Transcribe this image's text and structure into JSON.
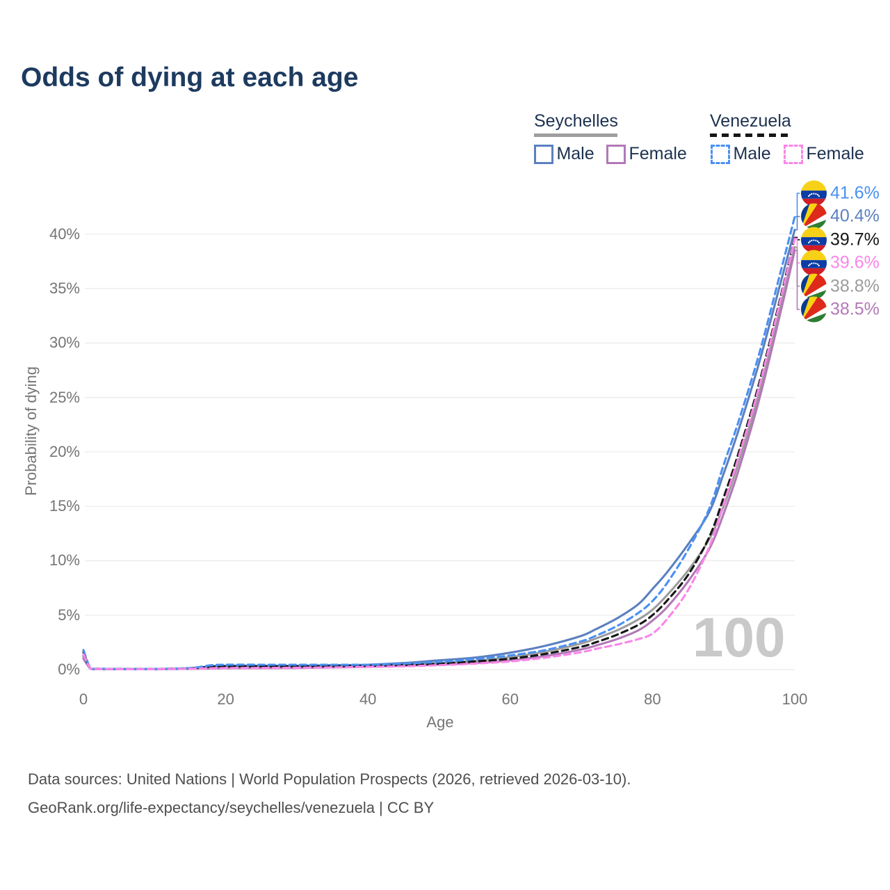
{
  "title": "Odds of dying at each age",
  "watermark": "100",
  "legend": {
    "groups": [
      {
        "name": "Seychelles",
        "line_style": "solid",
        "underline_color": "#9e9e9e",
        "items": [
          {
            "label": "Male",
            "color": "#5B80C0"
          },
          {
            "label": "Female",
            "color": "#B279B6"
          }
        ]
      },
      {
        "name": "Venezuela",
        "line_style": "dashed",
        "underline_color": "#161616",
        "items": [
          {
            "label": "Male",
            "color": "#4A90F2"
          },
          {
            "label": "Female",
            "color": "#FA86E8"
          }
        ]
      }
    ]
  },
  "footer": {
    "line1": "Data sources: United Nations | World Population Prospects (2026, retrieved 2026-03-10).",
    "line2": "GeoRank.org/life-expectancy/seychelles/venezuela | CC BY"
  },
  "chart_data": {
    "type": "line",
    "title": "Odds of dying at each age",
    "xlabel": "Age",
    "ylabel": "Probability of dying",
    "xlim": [
      0,
      100
    ],
    "ylim_pct": [
      0,
      42
    ],
    "grid": "horizontal",
    "legend_position": "top-right",
    "x_ticks": [
      0,
      20,
      40,
      60,
      80,
      100
    ],
    "y_ticks": {
      "values": [
        0,
        5,
        10,
        15,
        20,
        25,
        30,
        35,
        40
      ],
      "labels": [
        "0%",
        "5%",
        "10%",
        "15%",
        "20%",
        "25%",
        "30%",
        "35%",
        "40%"
      ]
    },
    "x": [
      0,
      1,
      2,
      5,
      10,
      15,
      18,
      20,
      25,
      30,
      35,
      40,
      45,
      50,
      55,
      60,
      65,
      70,
      72,
      75,
      78,
      80,
      82,
      85,
      88,
      90,
      92,
      95,
      98,
      100
    ],
    "series": [
      {
        "id": "ve-male",
        "country": "Venezuela",
        "sex": "male",
        "flag": "ve",
        "color": "#4A90F2",
        "dashed": true,
        "end_label": "41.6%",
        "values": [
          1.8,
          0.12,
          0.08,
          0.05,
          0.05,
          0.15,
          0.4,
          0.45,
          0.45,
          0.45,
          0.45,
          0.45,
          0.55,
          0.7,
          0.95,
          1.3,
          1.8,
          2.6,
          3.1,
          4.0,
          5.2,
          6.3,
          7.9,
          11.0,
          14.8,
          18.8,
          22.6,
          29.0,
          36.5,
          41.6
        ]
      },
      {
        "id": "sc-male",
        "country": "Seychelles",
        "sex": "male",
        "flag": "sc",
        "color": "#5B80C0",
        "dashed": false,
        "end_label": "40.4%",
        "values": [
          1.3,
          0.1,
          0.07,
          0.05,
          0.05,
          0.12,
          0.3,
          0.35,
          0.35,
          0.35,
          0.4,
          0.45,
          0.6,
          0.85,
          1.1,
          1.55,
          2.2,
          3.1,
          3.7,
          4.7,
          6.0,
          7.4,
          8.9,
          11.5,
          14.5,
          18.0,
          21.8,
          28.2,
          35.5,
          40.4
        ]
      },
      {
        "id": "ve-all",
        "country": "Venezuela",
        "sex": "all",
        "flag": "ve",
        "color": "#161616",
        "dashed": true,
        "end_label": "39.7%",
        "values": [
          1.6,
          0.11,
          0.07,
          0.05,
          0.05,
          0.12,
          0.28,
          0.3,
          0.3,
          0.3,
          0.32,
          0.35,
          0.42,
          0.55,
          0.75,
          1.0,
          1.45,
          2.1,
          2.5,
          3.2,
          4.1,
          5.0,
          6.3,
          8.7,
          12.2,
          15.8,
          19.7,
          26.3,
          34.2,
          39.7
        ]
      },
      {
        "id": "ve-female",
        "country": "Venezuela",
        "sex": "female",
        "flag": "ve",
        "color": "#FA86E8",
        "dashed": true,
        "end_label": "39.6%",
        "values": [
          1.4,
          0.1,
          0.06,
          0.04,
          0.04,
          0.08,
          0.12,
          0.14,
          0.15,
          0.17,
          0.2,
          0.24,
          0.3,
          0.4,
          0.55,
          0.75,
          1.1,
          1.6,
          1.9,
          2.3,
          2.8,
          3.3,
          4.6,
          7.3,
          11.3,
          15.2,
          19.3,
          26.0,
          34.0,
          39.6
        ]
      },
      {
        "id": "sc-all",
        "country": "Seychelles",
        "sex": "all",
        "flag": "sc",
        "color": "#9C9C9C",
        "dashed": false,
        "end_label": "38.8%",
        "values": [
          1.15,
          0.09,
          0.06,
          0.04,
          0.04,
          0.1,
          0.2,
          0.24,
          0.25,
          0.27,
          0.3,
          0.35,
          0.45,
          0.6,
          0.8,
          1.15,
          1.65,
          2.4,
          2.85,
          3.6,
          4.6,
          5.5,
          6.8,
          9.1,
          12.0,
          15.0,
          18.8,
          25.4,
          33.3,
          38.8
        ]
      },
      {
        "id": "sc-female",
        "country": "Seychelles",
        "sex": "female",
        "flag": "sc",
        "color": "#B279B6",
        "dashed": false,
        "end_label": "38.5%",
        "values": [
          1.0,
          0.08,
          0.05,
          0.04,
          0.04,
          0.07,
          0.1,
          0.12,
          0.13,
          0.15,
          0.2,
          0.26,
          0.35,
          0.45,
          0.6,
          0.85,
          1.25,
          1.85,
          2.2,
          2.8,
          3.6,
          4.5,
          5.7,
          8.1,
          11.1,
          14.3,
          18.1,
          24.8,
          32.8,
          38.5
        ]
      }
    ]
  }
}
